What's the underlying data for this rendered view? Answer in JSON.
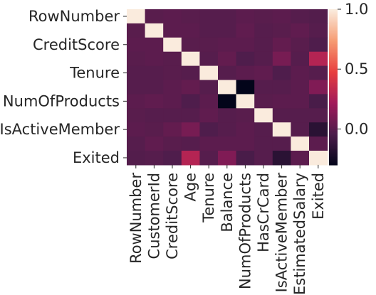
{
  "chart_data": {
    "type": "heatmap",
    "title": "",
    "xlabel": "",
    "ylabel": "",
    "x_labels": [
      "RowNumber",
      "CustomerId",
      "CreditScore",
      "Age",
      "Tenure",
      "Balance",
      "NumOfProducts",
      "HasCrCard",
      "IsActiveMember",
      "EstimatedSalary",
      "Exited"
    ],
    "y_labels": [
      "RowNumber",
      "CustomerId",
      "CreditScore",
      "Age",
      "Tenure",
      "Balance",
      "NumOfProducts",
      "HasCrCard",
      "IsActiveMember",
      "EstimatedSalary",
      "Exited"
    ],
    "y_tick_labels_shown": [
      "RowNumber",
      "CreditScore",
      "Tenure",
      "NumOfProducts",
      "IsActiveMember",
      "Exited"
    ],
    "values": [
      [
        1.0,
        0.0,
        0.01,
        0.0,
        -0.01,
        -0.01,
        0.01,
        0.0,
        0.01,
        -0.01,
        -0.02
      ],
      [
        0.0,
        1.0,
        0.01,
        0.01,
        -0.01,
        -0.01,
        0.02,
        -0.01,
        0.0,
        0.02,
        -0.01
      ],
      [
        0.01,
        0.01,
        1.0,
        0.0,
        0.0,
        0.01,
        0.01,
        -0.01,
        0.03,
        0.0,
        -0.03
      ],
      [
        0.0,
        0.01,
        0.0,
        1.0,
        -0.01,
        0.03,
        -0.03,
        -0.01,
        0.09,
        -0.01,
        0.29
      ],
      [
        -0.01,
        -0.01,
        0.0,
        -0.01,
        1.0,
        -0.01,
        0.01,
        0.02,
        -0.03,
        0.01,
        -0.01
      ],
      [
        -0.01,
        -0.01,
        0.01,
        0.03,
        -0.01,
        1.0,
        -0.3,
        -0.01,
        -0.01,
        0.01,
        0.12
      ],
      [
        0.01,
        0.02,
        0.01,
        -0.03,
        0.01,
        -0.3,
        1.0,
        0.0,
        0.01,
        0.01,
        -0.05
      ],
      [
        0.0,
        -0.01,
        -0.01,
        -0.01,
        0.02,
        -0.01,
        0.0,
        1.0,
        -0.01,
        -0.01,
        -0.01
      ],
      [
        0.01,
        0.0,
        0.03,
        0.09,
        -0.03,
        -0.01,
        0.01,
        -0.01,
        1.0,
        -0.01,
        -0.16
      ],
      [
        -0.01,
        0.02,
        0.0,
        -0.01,
        0.01,
        0.01,
        0.01,
        -0.01,
        -0.01,
        1.0,
        0.01
      ],
      [
        -0.02,
        -0.01,
        -0.03,
        0.29,
        -0.01,
        0.12,
        -0.05,
        -0.01,
        -0.16,
        0.01,
        1.0
      ]
    ],
    "vmin": -0.3,
    "vmax": 1.0,
    "colormap": [
      "#03051a",
      "#4c1d4b",
      "#a11a5b",
      "#e83f3f",
      "#f69c73",
      "#faebdd"
    ],
    "colorbar_ticks": [
      1.0,
      0.5,
      0.0
    ],
    "colorbar_tick_labels": [
      "1.0",
      "0.5",
      "0.0"
    ],
    "grid": false,
    "legend": "colorbar-right"
  }
}
